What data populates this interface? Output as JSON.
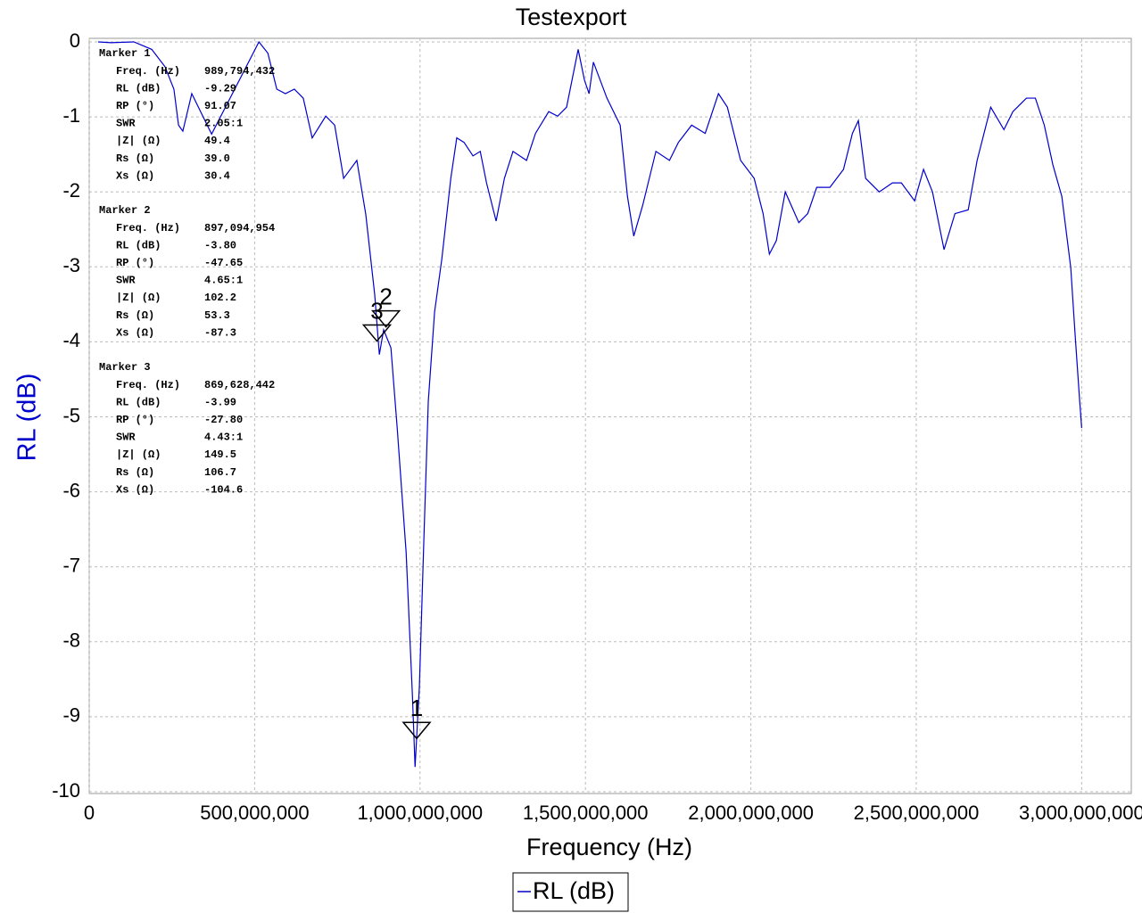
{
  "chart_data": {
    "type": "line",
    "title": "Testexport",
    "xlabel": "Frequency (Hz)",
    "ylabel": "RL (dB)",
    "xlim": [
      0,
      3150000000
    ],
    "ylim": [
      -10,
      0
    ],
    "xticks": [
      0,
      {
        "value": 500000000,
        "label": "500,000,000"
      },
      {
        "value": 1000000000,
        "label": "1,000,000,000"
      },
      {
        "value": 1500000000,
        "label": "1,500,000,000"
      },
      {
        "value": 2000000000,
        "label": "2,000,000,000"
      },
      {
        "value": 2500000000,
        "label": "2,500,000,000"
      },
      {
        "value": 3000000000,
        "label": "3,000,000,000"
      }
    ],
    "yticks": [
      -10,
      -9,
      -8,
      -7,
      -6,
      -5,
      -4,
      -3,
      -2,
      -1,
      0
    ],
    "grid": true,
    "x": [
      27000000,
      67000000,
      135000000,
      189000000,
      229000000,
      256000000,
      270000000,
      283000000,
      310000000,
      370000000,
      513000000,
      540000000,
      567000000,
      593000000,
      620000000,
      647000000,
      674000000,
      715000000,
      742000000,
      769000000,
      809000000,
      836000000,
      863000000,
      877000000,
      890000000,
      912000000,
      931000000,
      958000000,
      977000000,
      985000000,
      998000000,
      1012000000,
      1025000000,
      1044000000,
      1066000000,
      1093000000,
      1111000000,
      1133000000,
      1160000000,
      1182000000,
      1201000000,
      1230000000,
      1255000000,
      1281000000,
      1322000000,
      1349000000,
      1389000000,
      1416000000,
      1443000000,
      1478000000,
      1497000000,
      1511000000,
      1524000000,
      1565000000,
      1605000000,
      1627000000,
      1646000000,
      1673000000,
      1713000000,
      1754000000,
      1781000000,
      1821000000,
      1862000000,
      1902000000,
      1929000000,
      1969000000,
      2010000000,
      2037000000,
      2056000000,
      2077000000,
      2104000000,
      2145000000,
      2172000000,
      2199000000,
      2239000000,
      2280000000,
      2307000000,
      2325000000,
      2347000000,
      2388000000,
      2428000000,
      2455000000,
      2495000000,
      2522000000,
      2549000000,
      2584000000,
      2617000000,
      2657000000,
      2684000000,
      2725000000,
      2765000000,
      2792000000,
      2833000000,
      2860000000,
      2887000000,
      2913000000,
      2940000000,
      2967000000,
      2981000000,
      2994000000,
      3000000000
    ],
    "series": [
      {
        "name": "RL (dB)",
        "color": "#0000cc",
        "values": [
          0,
          -0.01,
          0,
          -0.1,
          -0.33,
          -0.63,
          -1.11,
          -1.19,
          -0.69,
          -1.23,
          0,
          -0.15,
          -0.63,
          -0.69,
          -0.63,
          -0.75,
          -1.28,
          -0.99,
          -1.11,
          -1.82,
          -1.58,
          -2.3,
          -3.37,
          -4.17,
          -3.84,
          -4.08,
          -5.15,
          -6.81,
          -8.72,
          -9.67,
          -8.6,
          -6.58,
          -4.79,
          -3.6,
          -2.89,
          -1.82,
          -1.28,
          -1.34,
          -1.52,
          -1.46,
          -1.88,
          -2.39,
          -1.82,
          -1.46,
          -1.58,
          -1.22,
          -0.93,
          -0.99,
          -0.87,
          -0.1,
          -0.51,
          -0.69,
          -0.27,
          -0.75,
          -1.11,
          -2.06,
          -2.59,
          -2.18,
          -1.46,
          -1.58,
          -1.34,
          -1.11,
          -1.22,
          -0.69,
          -0.87,
          -1.58,
          -1.82,
          -2.29,
          -2.83,
          -2.65,
          -2.0,
          -2.41,
          -2.29,
          -1.94,
          -1.94,
          -1.7,
          -1.22,
          -1.05,
          -1.82,
          -2.0,
          -1.88,
          -1.88,
          -2.12,
          -1.7,
          -2.0,
          -2.77,
          -2.29,
          -2.24,
          -1.58,
          -0.87,
          -1.17,
          -0.93,
          -0.75,
          -0.75,
          -1.11,
          -1.64,
          -2.06,
          -3.01,
          -3.96,
          -4.79,
          -5.15
        ]
      }
    ],
    "markers": [
      {
        "label": "1",
        "title": "Marker 1",
        "x": 989794432,
        "y": -9.29,
        "readout": [
          [
            "Freq. (Hz)",
            "989,794,432"
          ],
          [
            "RL (dB)",
            "-9.29"
          ],
          [
            "RP (°)",
            "91.07"
          ],
          [
            "SWR",
            "2.05:1"
          ],
          [
            "|Z| (Ω)",
            "49.4"
          ],
          [
            "Rs (Ω)",
            "39.0"
          ],
          [
            "Xs (Ω)",
            "30.4"
          ]
        ]
      },
      {
        "label": "2",
        "title": "Marker 2",
        "x": 897094954,
        "y": -3.8,
        "readout": [
          [
            "Freq. (Hz)",
            "897,094,954"
          ],
          [
            "RL (dB)",
            "-3.80"
          ],
          [
            "RP (°)",
            "-47.65"
          ],
          [
            "SWR",
            "4.65:1"
          ],
          [
            "|Z| (Ω)",
            "102.2"
          ],
          [
            "Rs (Ω)",
            "53.3"
          ],
          [
            "Xs (Ω)",
            "-87.3"
          ]
        ]
      },
      {
        "label": "3",
        "title": "Marker 3",
        "x": 869628442,
        "y": -3.99,
        "readout": [
          [
            "Freq. (Hz)",
            "869,628,442"
          ],
          [
            "RL (dB)",
            "-3.99"
          ],
          [
            "RP (°)",
            "-27.80"
          ],
          [
            "SWR",
            "4.43:1"
          ],
          [
            "|Z| (Ω)",
            "149.5"
          ],
          [
            "Rs (Ω)",
            "106.7"
          ],
          [
            "Xs (Ω)",
            "-104.6"
          ]
        ]
      }
    ]
  }
}
